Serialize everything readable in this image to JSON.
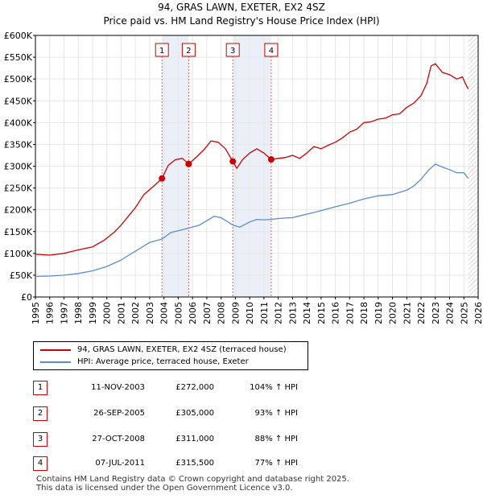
{
  "title_line1": "94, GRAS LAWN, EXETER, EX2 4SZ",
  "title_line2": "Price paid vs. HM Land Registry's House Price Index (HPI)",
  "chart_data": {
    "type": "line",
    "xlim": [
      1995,
      2026
    ],
    "ylim": [
      0,
      600000
    ],
    "x_ticks": [
      "1995",
      "1996",
      "1997",
      "1998",
      "1999",
      "2000",
      "2001",
      "2002",
      "2003",
      "2004",
      "2005",
      "2006",
      "2007",
      "2008",
      "2009",
      "2010",
      "2011",
      "2012",
      "2013",
      "2014",
      "2015",
      "2016",
      "2017",
      "2018",
      "2019",
      "2020",
      "2021",
      "2022",
      "2023",
      "2024",
      "2025",
      "2026"
    ],
    "y_ticks": [
      {
        "value": 0,
        "label": "£0"
      },
      {
        "value": 50000,
        "label": "£50K"
      },
      {
        "value": 100000,
        "label": "£100K"
      },
      {
        "value": 150000,
        "label": "£150K"
      },
      {
        "value": 200000,
        "label": "£200K"
      },
      {
        "value": 250000,
        "label": "£250K"
      },
      {
        "value": 300000,
        "label": "£300K"
      },
      {
        "value": 350000,
        "label": "£350K"
      },
      {
        "value": 400000,
        "label": "£400K"
      },
      {
        "value": 450000,
        "label": "£450K"
      },
      {
        "value": 500000,
        "label": "£500K"
      },
      {
        "value": 550000,
        "label": "£550K"
      },
      {
        "value": 600000,
        "label": "£600K"
      }
    ],
    "shaded_ranges": [
      [
        2003.86,
        2005.73
      ],
      [
        2008.82,
        2011.51
      ]
    ],
    "hatched_from": 2025.3,
    "series": [
      {
        "name": "94, GRAS LAWN, EXETER, EX2 4SZ (terraced house)",
        "color": "#cc0000",
        "x": [
          1995,
          1996,
          1997,
          1998,
          1999,
          1999.8,
          2000.5,
          2001,
          2001.5,
          2002,
          2002.6,
          2003.3,
          2003.86,
          2004.3,
          2004.8,
          2005.3,
          2005.73,
          2006.3,
          2006.8,
          2007.3,
          2007.8,
          2008.3,
          2008.82,
          2009.1,
          2009.5,
          2010,
          2010.5,
          2011,
          2011.51,
          2012,
          2012.5,
          2013,
          2013.5,
          2014,
          2014.5,
          2015,
          2015.5,
          2016,
          2016.5,
          2017,
          2017.5,
          2018,
          2018.5,
          2019,
          2019.5,
          2020,
          2020.5,
          2021,
          2021.5,
          2022,
          2022.4,
          2022.7,
          2023,
          2023.5,
          2024,
          2024.5,
          2024.9,
          2025.1,
          2025.3
        ],
        "y": [
          98000,
          96000,
          100000,
          108000,
          115000,
          130000,
          148000,
          165000,
          185000,
          205000,
          235000,
          255000,
          272000,
          302000,
          315000,
          318000,
          305000,
          322000,
          338000,
          358000,
          355000,
          340000,
          311000,
          295000,
          315000,
          330000,
          340000,
          330000,
          315500,
          318000,
          320000,
          325000,
          318000,
          330000,
          345000,
          340000,
          348000,
          355000,
          365000,
          378000,
          385000,
          400000,
          402000,
          408000,
          410000,
          418000,
          420000,
          435000,
          445000,
          462000,
          490000,
          530000,
          535000,
          515000,
          510000,
          500000,
          505000,
          490000,
          477000
        ]
      },
      {
        "name": "HPI: Average price, terraced house, Exeter",
        "color": "#5b8ccf",
        "x": [
          1995,
          1996,
          1997,
          1998,
          1999,
          2000,
          2001,
          2002,
          2003,
          2003.86,
          2004.5,
          2005,
          2005.73,
          2006.5,
          2007,
          2007.5,
          2008,
          2008.82,
          2009.3,
          2010,
          2010.5,
          2011,
          2011.51,
          2012,
          2013,
          2014,
          2015,
          2016,
          2017,
          2018,
          2019,
          2020,
          2021,
          2021.5,
          2022,
          2022.5,
          2023,
          2023.5,
          2024,
          2024.5,
          2025,
          2025.3
        ],
        "y": [
          47000,
          48000,
          50000,
          54000,
          60000,
          70000,
          85000,
          105000,
          125000,
          133000,
          148000,
          152000,
          158000,
          165000,
          175000,
          185000,
          182000,
          165000,
          160000,
          172000,
          178000,
          177000,
          178000,
          180000,
          182000,
          190000,
          198000,
          207000,
          215000,
          225000,
          232000,
          235000,
          245000,
          255000,
          270000,
          290000,
          305000,
          298000,
          292000,
          285000,
          285000,
          272000
        ]
      }
    ],
    "sales": [
      {
        "num": "1",
        "x": 2003.86,
        "price": 272000
      },
      {
        "num": "2",
        "x": 2005.73,
        "price": 305000
      },
      {
        "num": "3",
        "x": 2008.82,
        "price": 311000
      },
      {
        "num": "4",
        "x": 2011.51,
        "price": 315500
      }
    ]
  },
  "legend": {
    "property_label": "94, GRAS LAWN, EXETER, EX2 4SZ (terraced house)",
    "hpi_label": "HPI: Average price, terraced house, Exeter",
    "property_color": "#cc0000",
    "hpi_color": "#5b8ccf"
  },
  "sales_table": [
    {
      "num": "1",
      "date": "11-NOV-2003",
      "price": "£272,000",
      "hpi": "104% ↑ HPI"
    },
    {
      "num": "2",
      "date": "26-SEP-2005",
      "price": "£305,000",
      "hpi": "93% ↑ HPI"
    },
    {
      "num": "3",
      "date": "27-OCT-2008",
      "price": "£311,000",
      "hpi": "88% ↑ HPI"
    },
    {
      "num": "4",
      "date": "07-JUL-2011",
      "price": "£315,500",
      "hpi": "77% ↑ HPI"
    }
  ],
  "footer_line1": "Contains HM Land Registry data © Crown copyright and database right 2025.",
  "footer_line2": "This data is licensed under the Open Government Licence v3.0."
}
